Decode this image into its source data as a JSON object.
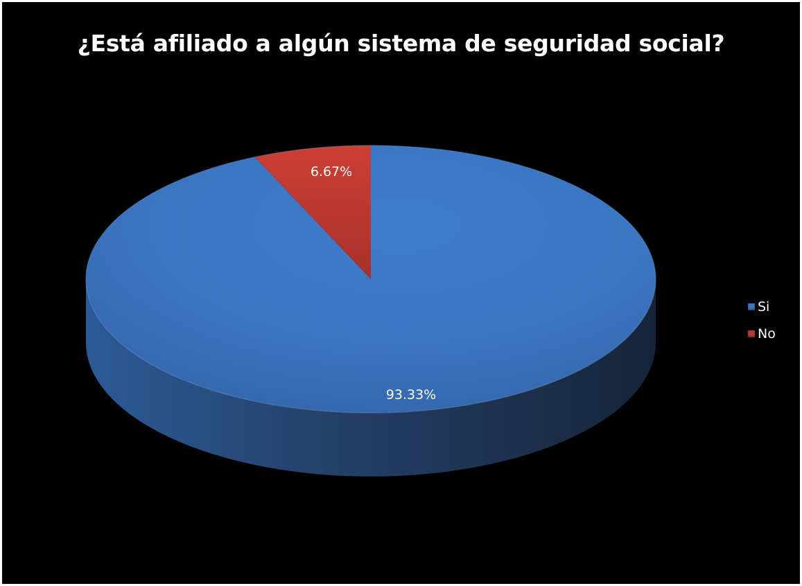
{
  "chart_data": {
    "type": "pie",
    "title": "¿Está afiliado a algún sistema de seguridad social?",
    "categories": [
      "Si",
      "No"
    ],
    "values": [
      93.33,
      6.67
    ],
    "data_labels": [
      "93.33%",
      "6.67%"
    ],
    "legend_position": "right",
    "colors": [
      "#3A74C2",
      "#C0392F"
    ],
    "style": "3d"
  }
}
